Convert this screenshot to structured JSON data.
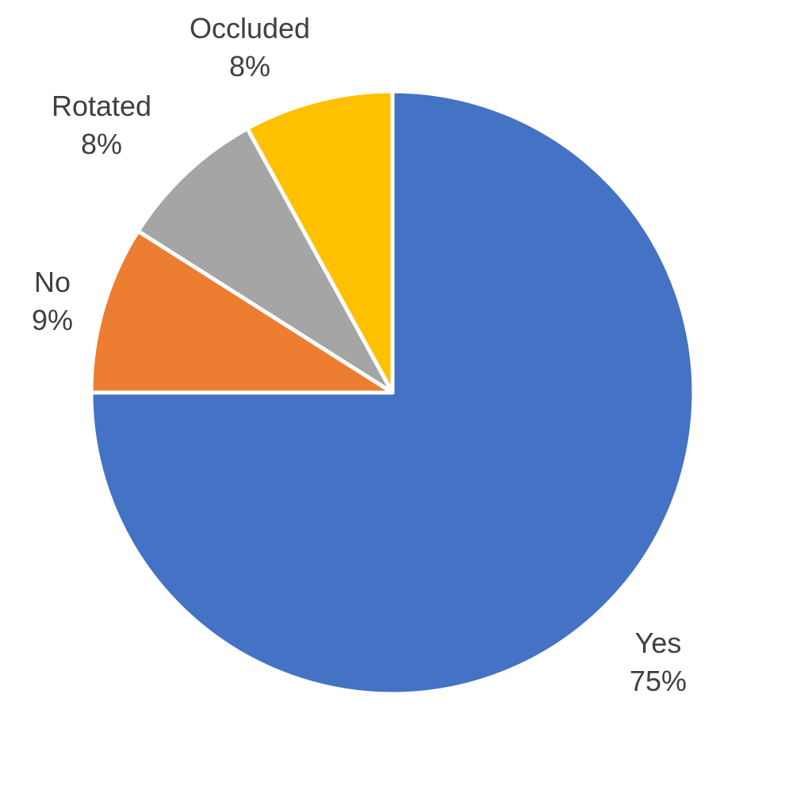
{
  "chart_data": {
    "type": "pie",
    "slices": [
      {
        "label": "Yes",
        "value": 75,
        "display": "75%",
        "color": "#4472C4"
      },
      {
        "label": "No",
        "value": 9,
        "display": "9%",
        "color": "#ED7D31"
      },
      {
        "label": "Rotated",
        "value": 8,
        "display": "8%",
        "color": "#A5A5A5"
      },
      {
        "label": "Occluded",
        "value": 8,
        "display": "8%",
        "color": "#FFC000"
      }
    ],
    "start_angle": "12 o'clock",
    "direction": "clockwise",
    "data_labels": "category name and percentage, outside end",
    "legend": "none"
  }
}
